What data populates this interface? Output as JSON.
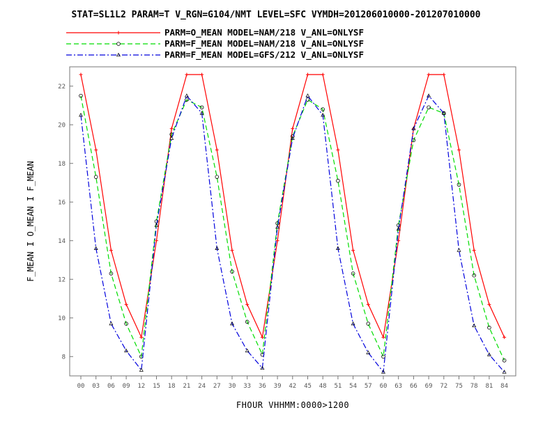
{
  "header": {
    "title": "STAT=SL1L2 PARAM=T V_RGN=G104/NMT LEVEL=SFC VYMDH=201206010000-201207010000"
  },
  "colors": {
    "o_mean_nam": "#ff0000",
    "f_mean_nam": "#00dd00",
    "f_mean_gfs": "#0000dd"
  },
  "chart_data": {
    "type": "line",
    "title": "STAT=SL1L2 PARAM=T V_RGN=G104/NMT LEVEL=SFC VYMDH=201206010000-201207010000",
    "xlabel": "FHOUR VHHMM:0000>1200",
    "ylabel": "F_MEAN I O_MEAN I F_MEAN",
    "categories": [
      "00",
      "03",
      "06",
      "09",
      "12",
      "15",
      "18",
      "21",
      "24",
      "27",
      "30",
      "33",
      "36",
      "39",
      "42",
      "45",
      "48",
      "51",
      "54",
      "57",
      "60",
      "63",
      "66",
      "69",
      "72",
      "75",
      "78",
      "81",
      "84"
    ],
    "ylim": [
      7,
      23
    ],
    "yticks": [
      8,
      10,
      12,
      14,
      16,
      18,
      20,
      22
    ],
    "grid": false,
    "legend_position": "top",
    "series": [
      {
        "name": "PARM=O_MEAN MODEL=NAM/218 V_ANL=ONLYSF",
        "color": "#ff0000",
        "style": "solid",
        "marker": "plus",
        "values": [
          22.6,
          18.7,
          13.5,
          10.7,
          9.0,
          14.0,
          19.8,
          22.6,
          22.6,
          18.7,
          13.5,
          10.7,
          9.0,
          14.0,
          19.8,
          22.6,
          22.6,
          18.7,
          13.5,
          10.7,
          9.0,
          14.0,
          19.8,
          22.6,
          22.6,
          18.7,
          13.5,
          10.7,
          9.0
        ]
      },
      {
        "name": "PARM=F_MEAN MODEL=NAM/218 V_ANL=ONLYSF",
        "color": "#00dd00",
        "style": "dashed",
        "marker": "circle",
        "values": [
          21.5,
          17.3,
          12.3,
          9.7,
          8.0,
          15.0,
          19.5,
          21.3,
          20.9,
          17.3,
          12.4,
          9.8,
          8.1,
          14.9,
          19.4,
          21.3,
          20.8,
          17.1,
          12.3,
          9.7,
          8.0,
          14.8,
          19.2,
          20.9,
          20.6,
          16.9,
          12.2,
          9.5,
          7.8
        ]
      },
      {
        "name": "PARM=F_MEAN MODEL=GFS/212 V_ANL=ONLYSF",
        "color": "#0000dd",
        "style": "dashdot",
        "marker": "triangle",
        "values": [
          20.5,
          13.6,
          9.7,
          8.3,
          7.3,
          14.8,
          19.3,
          21.5,
          20.6,
          13.6,
          9.7,
          8.3,
          7.4,
          14.7,
          19.3,
          21.5,
          20.5,
          13.6,
          9.7,
          8.2,
          7.2,
          14.6,
          19.8,
          21.5,
          20.6,
          13.5,
          9.6,
          8.1,
          7.2
        ]
      }
    ]
  }
}
